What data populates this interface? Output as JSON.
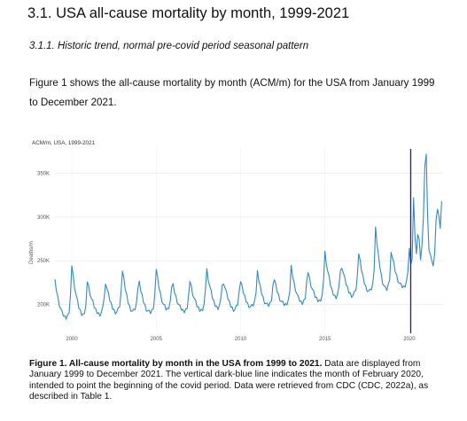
{
  "section_heading": "3.1. USA all-cause mortality by month, 1999-2021",
  "subsection_heading": "3.1.1. Historic trend, normal pre-covid period seasonal pattern",
  "intro_paragraph": "Figure 1 shows the all-cause mortality by month (ACM/m) for the USA from January 1999 to December 2021.",
  "caption": {
    "bold": "Figure 1. All-cause mortality by month in the USA from 1999 to 2021.",
    "text": " Data are displayed from January 1999 to December 2021. The vertical dark-blue line indicates the month of February 2020, intended to point the beginning of the covid period. Data were retrieved from CDC (CDC, 2022a), as described in Table 1."
  },
  "chart_data": {
    "type": "line",
    "title": "ACM/m, USA, 1999-2021",
    "xlabel": "",
    "ylabel": "Deaths/m",
    "xlim": [
      1999.0,
      2022.0
    ],
    "ylim": [
      170000,
      380000
    ],
    "x_ticks": [
      2000,
      2005,
      2010,
      2015,
      2020
    ],
    "y_ticks": [
      {
        "value": 200000,
        "label": "200K"
      },
      {
        "value": 250000,
        "label": "250K"
      },
      {
        "value": 300000,
        "label": "300K"
      },
      {
        "value": 350000,
        "label": "350K"
      }
    ],
    "grid": true,
    "line_color": "#2a8ad9",
    "marker_line": {
      "x": 2020.083,
      "color": "#1e1e8c"
    },
    "peak_months": {
      "1999": 227000,
      "2000": 246000,
      "2001": 220000,
      "2002": 226000,
      "2003": 238000,
      "2004": 224000,
      "2005": 241000,
      "2006": 222000,
      "2007": 228000,
      "2008": 240000,
      "2009": 226000,
      "2010": 226000,
      "2011": 236000,
      "2012": 229000,
      "2013": 243000,
      "2014": 238000,
      "2015": 260000,
      "2016": 244000,
      "2017": 258000,
      "2018": 286000,
      "2019": 254000,
      "2020": 264000
    },
    "trough_months": {
      "1999": 183000,
      "2000": 186000,
      "2001": 188000,
      "2002": 190000,
      "2003": 190000,
      "2004": 189000,
      "2005": 192000,
      "2006": 191000,
      "2007": 192000,
      "2008": 195000,
      "2009": 193000,
      "2010": 196000,
      "2011": 197000,
      "2012": 198000,
      "2013": 200000,
      "2014": 203000,
      "2015": 207000,
      "2016": 209000,
      "2017": 213000,
      "2018": 214000,
      "2019": 218000
    },
    "covid_series": {
      "x": [
        2020.0,
        2020.083,
        2020.167,
        2020.25,
        2020.333,
        2020.417,
        2020.5,
        2020.583,
        2020.667,
        2020.75,
        2020.833,
        2020.917,
        2021.0,
        2021.083,
        2021.167,
        2021.25,
        2021.333,
        2021.417,
        2021.5,
        2021.583,
        2021.667,
        2021.75,
        2021.833,
        2021.917
      ],
      "values": [
        264000,
        246000,
        252000,
        322000,
        277000,
        258000,
        280000,
        275000,
        251000,
        268000,
        300000,
        358000,
        372000,
        303000,
        262000,
        257000,
        250000,
        244000,
        258000,
        297000,
        309000,
        302000,
        287000,
        318000
      ]
    }
  }
}
